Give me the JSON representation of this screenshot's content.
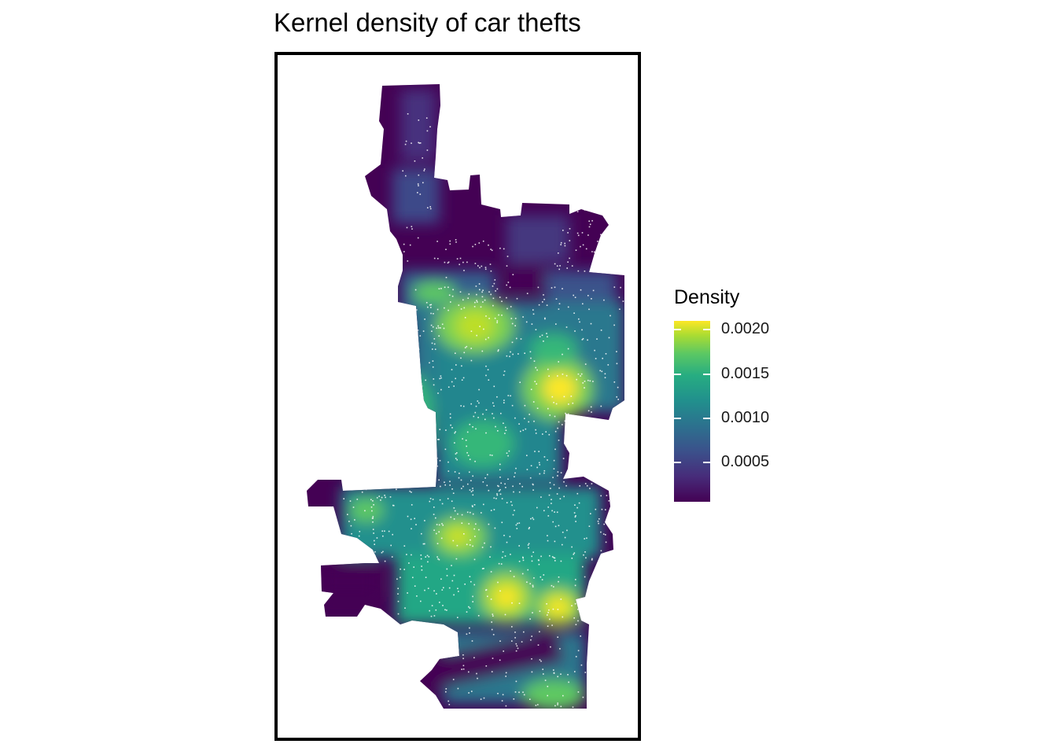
{
  "title": "Kernel density of car thefts",
  "legend": {
    "title": "Density",
    "ticks": [
      "0.0020",
      "0.0015",
      "0.0010",
      "0.0005"
    ],
    "tick_values": [
      0.002,
      0.0015,
      0.001,
      0.0005
    ],
    "min": 6e-05,
    "max": 0.0021
  },
  "map": {
    "fill_palette": "viridis",
    "points_color": "#ffffff",
    "hotspot_color": "#fde725"
  }
}
